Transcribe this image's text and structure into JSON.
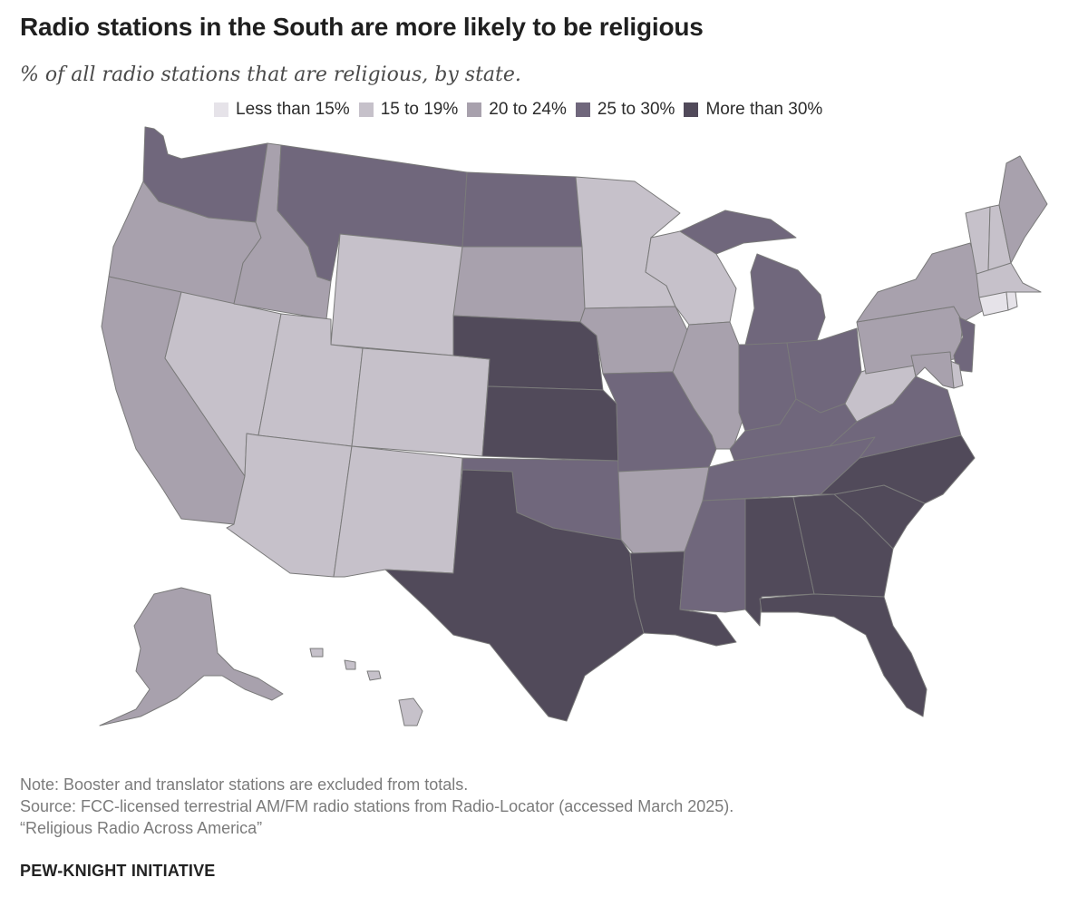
{
  "title": "Radio stations in the South are more likely to be religious",
  "subtitle": "% of all radio stations that are religious, by state.",
  "legend": [
    {
      "label": "Less than 15%",
      "color": "#e6e3e9"
    },
    {
      "label": "15 to 19%",
      "color": "#c6c1ca"
    },
    {
      "label": "20 to 24%",
      "color": "#a8a1ad"
    },
    {
      "label": "25 to 30%",
      "color": "#70677c"
    },
    {
      "label": "More than 30%",
      "color": "#514a5a"
    }
  ],
  "notes": {
    "note": "Note: Booster and translator stations are excluded from totals.",
    "source": "Source: FCC-licensed terrestrial AM/FM radio stations from Radio-Locator (accessed March 2025).",
    "report": "“Religious Radio Across America”"
  },
  "brand": "PEW-KNIGHT INITIATIVE",
  "states": [
    {
      "id": "WA",
      "category": 3
    },
    {
      "id": "OR",
      "category": 2
    },
    {
      "id": "CA",
      "category": 2
    },
    {
      "id": "NV",
      "category": 1
    },
    {
      "id": "ID",
      "category": 2
    },
    {
      "id": "MT",
      "category": 3
    },
    {
      "id": "WY",
      "category": 1
    },
    {
      "id": "UT",
      "category": 1
    },
    {
      "id": "AZ",
      "category": 1
    },
    {
      "id": "CO",
      "category": 1
    },
    {
      "id": "NM",
      "category": 1
    },
    {
      "id": "ND",
      "category": 3
    },
    {
      "id": "SD",
      "category": 2
    },
    {
      "id": "NE",
      "category": 4
    },
    {
      "id": "KS",
      "category": 4
    },
    {
      "id": "OK",
      "category": 3
    },
    {
      "id": "TX",
      "category": 4
    },
    {
      "id": "MN",
      "category": 1
    },
    {
      "id": "IA",
      "category": 2
    },
    {
      "id": "MO",
      "category": 3
    },
    {
      "id": "AR",
      "category": 2
    },
    {
      "id": "LA",
      "category": 4
    },
    {
      "id": "WI",
      "category": 1
    },
    {
      "id": "IL",
      "category": 2
    },
    {
      "id": "MI",
      "category": 3
    },
    {
      "id": "IN",
      "category": 3
    },
    {
      "id": "OH",
      "category": 3
    },
    {
      "id": "KY",
      "category": 3
    },
    {
      "id": "TN",
      "category": 3
    },
    {
      "id": "MS",
      "category": 3
    },
    {
      "id": "AL",
      "category": 4
    },
    {
      "id": "GA",
      "category": 4
    },
    {
      "id": "FL",
      "category": 4
    },
    {
      "id": "SC",
      "category": 4
    },
    {
      "id": "NC",
      "category": 4
    },
    {
      "id": "VA",
      "category": 3
    },
    {
      "id": "WV",
      "category": 1
    },
    {
      "id": "PA",
      "category": 2
    },
    {
      "id": "NY",
      "category": 2
    },
    {
      "id": "VT",
      "category": 1
    },
    {
      "id": "NH",
      "category": 1
    },
    {
      "id": "ME",
      "category": 2
    },
    {
      "id": "MA",
      "category": 1
    },
    {
      "id": "CT",
      "category": 0
    },
    {
      "id": "RI",
      "category": 0
    },
    {
      "id": "NJ",
      "category": 3
    },
    {
      "id": "DE",
      "category": 1
    },
    {
      "id": "MD",
      "category": 2
    },
    {
      "id": "AK",
      "category": 2
    },
    {
      "id": "HI",
      "category": 1
    }
  ]
}
